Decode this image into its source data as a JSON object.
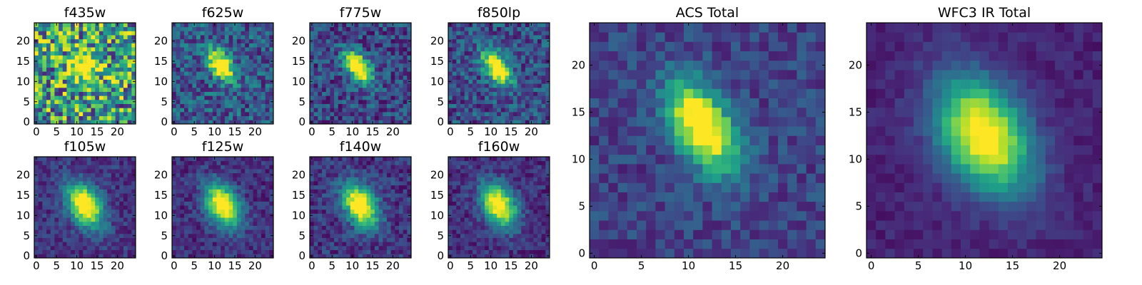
{
  "colormap": "viridis",
  "colormap_stops": [
    "#440154",
    "#482878",
    "#3e4989",
    "#31688e",
    "#26828e",
    "#1f9e89",
    "#35b779",
    "#6ece58",
    "#b5de2b",
    "#fde725"
  ],
  "chart_data": [
    {
      "type": "heatmap",
      "title": "f435w",
      "grid_size": 25,
      "xlim": [
        0,
        24
      ],
      "ylim": [
        0,
        24
      ],
      "xticks": [
        0,
        5,
        10,
        15,
        20
      ],
      "yticks": [
        0,
        5,
        10,
        15,
        20
      ],
      "source_center": [
        12,
        14
      ],
      "peak": 0.75,
      "noise": 0.45,
      "background": 0.55,
      "sigma_x": 2.5,
      "sigma_y": 2.5,
      "angle_deg": 0,
      "seed": 11
    },
    {
      "type": "heatmap",
      "title": "f625w",
      "grid_size": 25,
      "xlim": [
        0,
        24
      ],
      "ylim": [
        0,
        24
      ],
      "xticks": [
        0,
        5,
        10,
        15,
        20
      ],
      "yticks": [
        0,
        5,
        10,
        15,
        20
      ],
      "source_center": [
        11.5,
        14
      ],
      "peak": 1.0,
      "noise": 0.22,
      "background": 0.28,
      "sigma_x": 1.7,
      "sigma_y": 3.0,
      "angle_deg": 35,
      "seed": 23
    },
    {
      "type": "heatmap",
      "title": "f775w",
      "grid_size": 25,
      "xlim": [
        0,
        24
      ],
      "ylim": [
        0,
        24
      ],
      "xticks": [
        0,
        5,
        10,
        15,
        20
      ],
      "yticks": [
        0,
        5,
        10,
        15,
        20
      ],
      "source_center": [
        11.5,
        13.5
      ],
      "peak": 1.0,
      "noise": 0.2,
      "background": 0.22,
      "sigma_x": 1.7,
      "sigma_y": 3.2,
      "angle_deg": 35,
      "seed": 37
    },
    {
      "type": "heatmap",
      "title": "f850lp",
      "grid_size": 25,
      "xlim": [
        0,
        24
      ],
      "ylim": [
        0,
        24
      ],
      "xticks": [
        0,
        5,
        10,
        15,
        20
      ],
      "yticks": [
        0,
        5,
        10,
        15,
        20
      ],
      "source_center": [
        11.5,
        13.5
      ],
      "peak": 1.0,
      "noise": 0.2,
      "background": 0.24,
      "sigma_x": 1.8,
      "sigma_y": 3.3,
      "angle_deg": 35,
      "seed": 41
    },
    {
      "type": "heatmap",
      "title": "f105w",
      "grid_size": 25,
      "xlim": [
        0,
        24
      ],
      "ylim": [
        0,
        24
      ],
      "xticks": [
        0,
        5,
        10,
        15,
        20
      ],
      "yticks": [
        0,
        5,
        10,
        15,
        20
      ],
      "source_center": [
        12,
        12.5
      ],
      "peak": 1.0,
      "noise": 0.12,
      "background": 0.16,
      "sigma_x": 2.6,
      "sigma_y": 4.0,
      "angle_deg": 30,
      "seed": 53
    },
    {
      "type": "heatmap",
      "title": "f125w",
      "grid_size": 25,
      "xlim": [
        0,
        24
      ],
      "ylim": [
        0,
        24
      ],
      "xticks": [
        0,
        5,
        10,
        15,
        20
      ],
      "yticks": [
        0,
        5,
        10,
        15,
        20
      ],
      "source_center": [
        12,
        12.5
      ],
      "peak": 1.0,
      "noise": 0.12,
      "background": 0.14,
      "sigma_x": 2.6,
      "sigma_y": 4.0,
      "angle_deg": 30,
      "seed": 61
    },
    {
      "type": "heatmap",
      "title": "f140w",
      "grid_size": 25,
      "xlim": [
        0,
        24
      ],
      "ylim": [
        0,
        24
      ],
      "xticks": [
        0,
        5,
        10,
        15,
        20
      ],
      "yticks": [
        0,
        5,
        10,
        15,
        20
      ],
      "source_center": [
        12,
        12.5
      ],
      "peak": 1.0,
      "noise": 0.14,
      "background": 0.16,
      "sigma_x": 2.6,
      "sigma_y": 4.0,
      "angle_deg": 30,
      "seed": 71
    },
    {
      "type": "heatmap",
      "title": "f160w",
      "grid_size": 25,
      "xlim": [
        0,
        24
      ],
      "ylim": [
        0,
        24
      ],
      "xticks": [
        0,
        5,
        10,
        15,
        20
      ],
      "yticks": [
        0,
        5,
        10,
        15,
        20
      ],
      "source_center": [
        12,
        12.5
      ],
      "peak": 1.0,
      "noise": 0.12,
      "background": 0.14,
      "sigma_x": 2.6,
      "sigma_y": 4.0,
      "angle_deg": 30,
      "seed": 83
    },
    {
      "type": "heatmap",
      "title": "ACS Total",
      "grid_size": 25,
      "xlim": [
        0,
        24
      ],
      "ylim": [
        0,
        24
      ],
      "xticks": [
        0,
        5,
        10,
        15,
        20
      ],
      "yticks": [
        0,
        5,
        10,
        15,
        20
      ],
      "source_center": [
        11.5,
        13.5
      ],
      "peak": 1.0,
      "noise": 0.12,
      "background": 0.2,
      "sigma_x": 2.0,
      "sigma_y": 3.6,
      "angle_deg": 30,
      "seed": 97
    },
    {
      "type": "heatmap",
      "title": "WFC3 IR Total",
      "grid_size": 25,
      "xlim": [
        0,
        24
      ],
      "ylim": [
        0,
        24
      ],
      "xticks": [
        0,
        5,
        10,
        15,
        20
      ],
      "yticks": [
        0,
        5,
        10,
        15,
        20
      ],
      "source_center": [
        12,
        12.5
      ],
      "peak": 1.0,
      "noise": 0.06,
      "background": 0.1,
      "sigma_x": 3.0,
      "sigma_y": 4.5,
      "angle_deg": 30,
      "seed": 101
    }
  ]
}
